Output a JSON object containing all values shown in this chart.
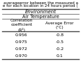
{
  "title_line1": "averageerror between the measured a",
  "title_line2": "e for each location in 24 hours period (",
  "header1": "Environment",
  "header2": "Air Temperature",
  "col1_header_line1": "Correlation",
  "col1_header_line2": "coefficient",
  "col1_header_line3": "(R²)",
  "col2_header_line1": "Average Error",
  "col2_header_line2": "(°C)",
  "rows": [
    [
      "0.956",
      "-0.8"
    ],
    [
      "0.975",
      "-0.5"
    ],
    [
      "0.972",
      "-0.2"
    ],
    [
      "0.970",
      "0.1"
    ]
  ],
  "background": "#ffffff",
  "text_color": "#000000",
  "line_color": "#444444",
  "font_size": 4.5,
  "title_font_size": 4.0,
  "header_font_size": 5.0
}
